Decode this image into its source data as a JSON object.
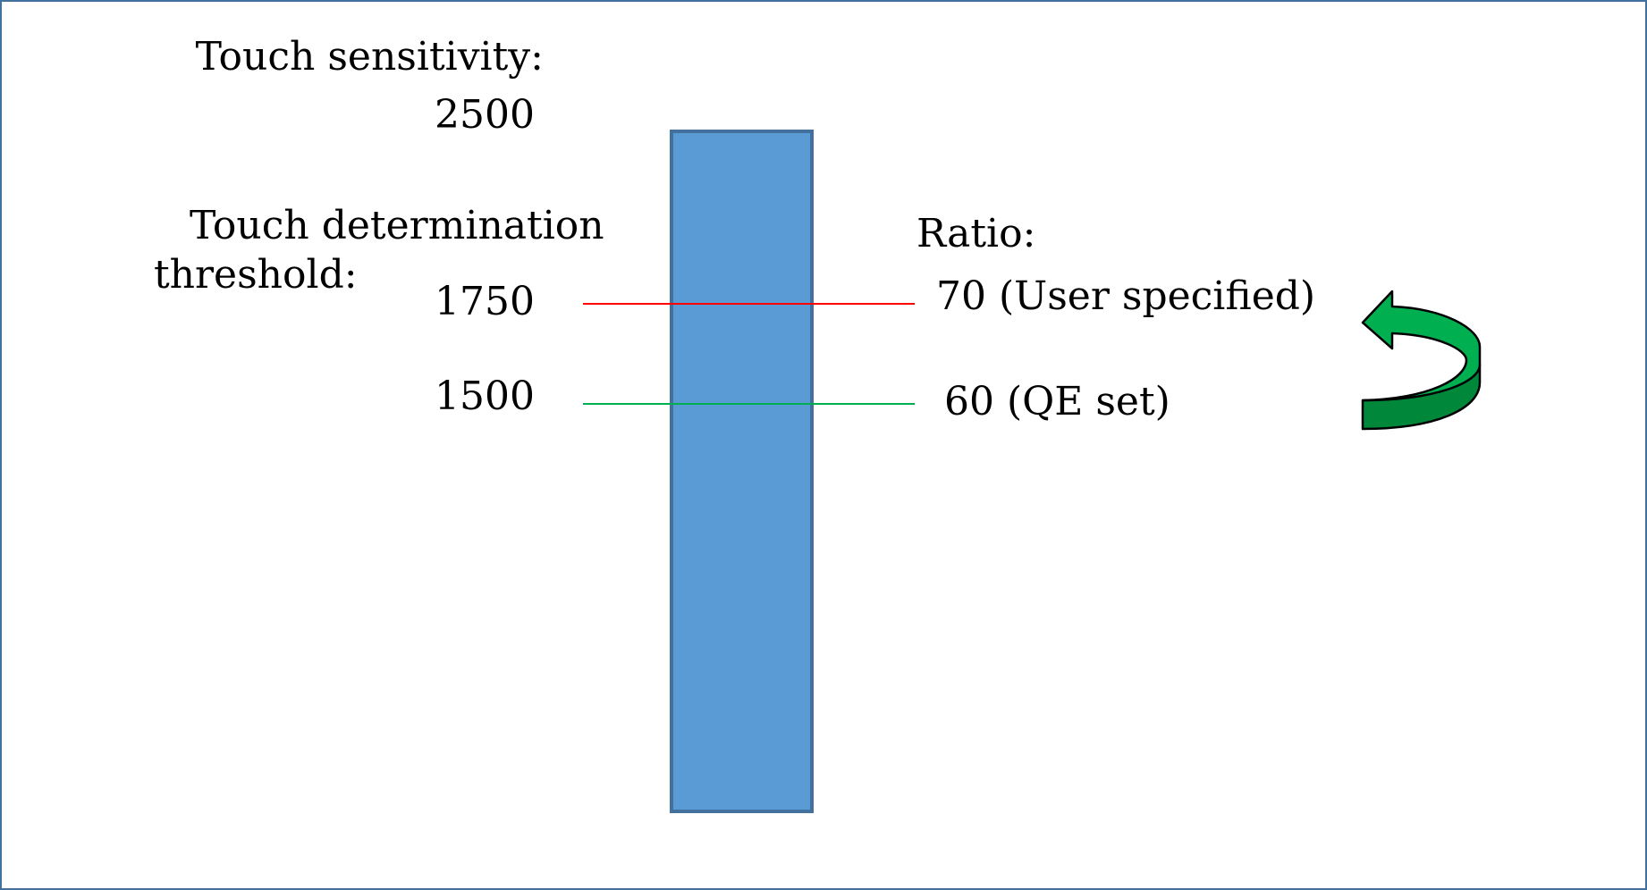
{
  "touch_sensitivity": {
    "title": "Touch sensitivity:",
    "value": "2500"
  },
  "touch_threshold": {
    "title_line1": "Touch determination",
    "title_line2": "threshold:",
    "user_value": "1750",
    "qe_value": "1500"
  },
  "ratio": {
    "title": "Ratio:",
    "user_label": "70 (User specified)",
    "qe_label": "60 (QE set)"
  },
  "colors": {
    "bar_fill": "#5b9bd5",
    "bar_stroke": "#41719c",
    "user_line": "#ff0000",
    "qe_line": "#00b050",
    "arrow_fill": "#00b050",
    "arrow_shadow": "#00873a",
    "frame": "#41719c"
  },
  "icons": {
    "arrow": "curved-return-arrow-icon"
  }
}
